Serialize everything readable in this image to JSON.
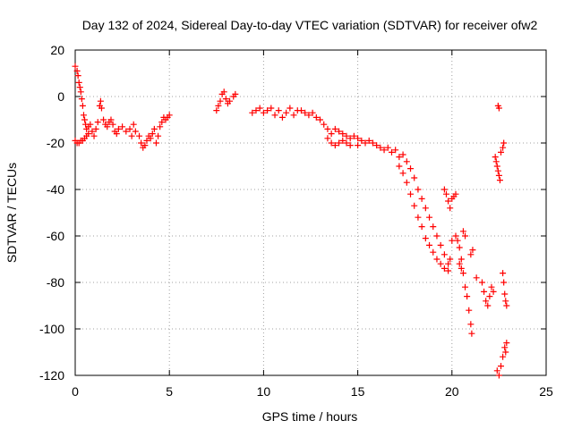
{
  "chart_data": {
    "type": "scatter",
    "title": "Day 132 of 2024, Sidereal Day-to-day VTEC variation (SDTVAR) for receiver ofw2",
    "xlabel": "GPS time / hours",
    "ylabel": "SDTVAR / TECUs",
    "xlim": [
      0,
      25
    ],
    "ylim": [
      -120,
      20
    ],
    "x_ticks": [
      0,
      5,
      10,
      15,
      20,
      25
    ],
    "y_ticks": [
      20,
      0,
      -20,
      -40,
      -60,
      -80,
      -100,
      -120
    ],
    "grid": true,
    "marker": "+",
    "series": [
      {
        "name": "SDTVAR",
        "color": "#ff0000",
        "points": [
          [
            0.0,
            13
          ],
          [
            0.1,
            11
          ],
          [
            0.15,
            9
          ],
          [
            0.2,
            6
          ],
          [
            0.25,
            4
          ],
          [
            0.3,
            2
          ],
          [
            0.35,
            -1
          ],
          [
            0.4,
            -4
          ],
          [
            0.0,
            -19
          ],
          [
            0.1,
            -20
          ],
          [
            0.2,
            -20
          ],
          [
            0.3,
            -19
          ],
          [
            0.4,
            -19
          ],
          [
            0.5,
            -18
          ],
          [
            0.6,
            -17
          ],
          [
            0.7,
            -16
          ],
          [
            0.45,
            -8
          ],
          [
            0.5,
            -10
          ],
          [
            0.55,
            -12
          ],
          [
            0.6,
            -14
          ],
          [
            0.7,
            -13
          ],
          [
            0.8,
            -12
          ],
          [
            0.9,
            -15
          ],
          [
            1.0,
            -17
          ],
          [
            1.1,
            -14
          ],
          [
            1.2,
            -11
          ],
          [
            1.3,
            -4
          ],
          [
            1.35,
            -2
          ],
          [
            1.4,
            -5
          ],
          [
            1.5,
            -10
          ],
          [
            1.6,
            -12
          ],
          [
            1.7,
            -13
          ],
          [
            1.8,
            -11
          ],
          [
            1.9,
            -10
          ],
          [
            2.0,
            -12
          ],
          [
            2.1,
            -15
          ],
          [
            2.2,
            -16
          ],
          [
            2.3,
            -14
          ],
          [
            2.5,
            -13
          ],
          [
            2.7,
            -15
          ],
          [
            2.9,
            -14
          ],
          [
            3.0,
            -17
          ],
          [
            3.1,
            -12
          ],
          [
            3.2,
            -15
          ],
          [
            3.4,
            -17
          ],
          [
            3.5,
            -20
          ],
          [
            3.6,
            -22
          ],
          [
            3.7,
            -21
          ],
          [
            3.8,
            -19
          ],
          [
            3.9,
            -17
          ],
          [
            4.0,
            -18
          ],
          [
            4.1,
            -16
          ],
          [
            4.2,
            -14
          ],
          [
            4.3,
            -20
          ],
          [
            4.4,
            -17
          ],
          [
            4.5,
            -13
          ],
          [
            4.6,
            -11
          ],
          [
            4.7,
            -9
          ],
          [
            4.8,
            -10
          ],
          [
            4.9,
            -9
          ],
          [
            5.0,
            -8
          ],
          [
            7.5,
            -6
          ],
          [
            7.6,
            -4
          ],
          [
            7.7,
            -2
          ],
          [
            7.8,
            1
          ],
          [
            7.9,
            2
          ],
          [
            8.0,
            -1
          ],
          [
            8.1,
            -3
          ],
          [
            8.2,
            -2
          ],
          [
            8.4,
            0
          ],
          [
            8.5,
            1
          ],
          [
            9.4,
            -7
          ],
          [
            9.6,
            -6
          ],
          [
            9.8,
            -5
          ],
          [
            10.0,
            -7
          ],
          [
            10.2,
            -6
          ],
          [
            10.4,
            -5
          ],
          [
            10.6,
            -8
          ],
          [
            10.8,
            -6
          ],
          [
            11.0,
            -9
          ],
          [
            11.2,
            -7
          ],
          [
            11.4,
            -5
          ],
          [
            11.6,
            -8
          ],
          [
            11.8,
            -6
          ],
          [
            12.0,
            -6
          ],
          [
            12.2,
            -7
          ],
          [
            12.4,
            -8
          ],
          [
            12.6,
            -7
          ],
          [
            12.8,
            -9
          ],
          [
            13.0,
            -10
          ],
          [
            13.2,
            -12
          ],
          [
            13.4,
            -14
          ],
          [
            13.6,
            -16
          ],
          [
            13.8,
            -14
          ],
          [
            14.0,
            -15
          ],
          [
            14.2,
            -16
          ],
          [
            14.4,
            -17
          ],
          [
            14.6,
            -18
          ],
          [
            14.8,
            -17
          ],
          [
            15.0,
            -18
          ],
          [
            15.2,
            -19
          ],
          [
            15.4,
            -20
          ],
          [
            15.6,
            -19
          ],
          [
            13.4,
            -18
          ],
          [
            13.6,
            -20
          ],
          [
            13.8,
            -21
          ],
          [
            14.0,
            -20
          ],
          [
            14.2,
            -19
          ],
          [
            14.4,
            -20
          ],
          [
            14.6,
            -21
          ],
          [
            15.0,
            -21
          ],
          [
            15.8,
            -20
          ],
          [
            16.0,
            -21
          ],
          [
            16.2,
            -22
          ],
          [
            16.4,
            -23
          ],
          [
            16.6,
            -22
          ],
          [
            16.8,
            -24
          ],
          [
            17.0,
            -23
          ],
          [
            17.2,
            -26
          ],
          [
            17.4,
            -25
          ],
          [
            17.6,
            -28
          ],
          [
            17.8,
            -31
          ],
          [
            18.0,
            -35
          ],
          [
            18.2,
            -40
          ],
          [
            18.4,
            -44
          ],
          [
            18.6,
            -48
          ],
          [
            18.8,
            -52
          ],
          [
            19.0,
            -56
          ],
          [
            19.2,
            -60
          ],
          [
            19.4,
            -64
          ],
          [
            19.6,
            -68
          ],
          [
            19.8,
            -72
          ],
          [
            19.9,
            -70
          ],
          [
            20.0,
            -62
          ],
          [
            17.2,
            -30
          ],
          [
            17.4,
            -33
          ],
          [
            17.6,
            -37
          ],
          [
            17.8,
            -42
          ],
          [
            18.0,
            -47
          ],
          [
            18.2,
            -52
          ],
          [
            18.4,
            -56
          ],
          [
            18.6,
            -61
          ],
          [
            18.8,
            -64
          ],
          [
            19.0,
            -67
          ],
          [
            19.2,
            -70
          ],
          [
            19.4,
            -72
          ],
          [
            19.6,
            -74
          ],
          [
            19.8,
            -75
          ],
          [
            19.6,
            -40
          ],
          [
            19.7,
            -42
          ],
          [
            19.8,
            -45
          ],
          [
            19.9,
            -48
          ],
          [
            20.0,
            -44
          ],
          [
            20.1,
            -43
          ],
          [
            20.2,
            -42
          ],
          [
            20.2,
            -60
          ],
          [
            20.3,
            -62
          ],
          [
            20.4,
            -65
          ],
          [
            20.5,
            -70
          ],
          [
            20.6,
            -76
          ],
          [
            20.7,
            -82
          ],
          [
            20.8,
            -86
          ],
          [
            20.9,
            -92
          ],
          [
            21.0,
            -98
          ],
          [
            21.05,
            -102
          ],
          [
            20.4,
            -72
          ],
          [
            20.5,
            -74
          ],
          [
            20.6,
            -58
          ],
          [
            20.7,
            -60
          ],
          [
            21.0,
            -68
          ],
          [
            21.1,
            -66
          ],
          [
            21.3,
            -78
          ],
          [
            21.6,
            -80
          ],
          [
            21.7,
            -84
          ],
          [
            21.8,
            -88
          ],
          [
            21.9,
            -90
          ],
          [
            22.0,
            -86
          ],
          [
            22.1,
            -82
          ],
          [
            22.2,
            -84
          ],
          [
            22.45,
            -4
          ],
          [
            22.5,
            -5
          ],
          [
            22.3,
            -26
          ],
          [
            22.35,
            -28
          ],
          [
            22.4,
            -30
          ],
          [
            22.45,
            -32
          ],
          [
            22.5,
            -34
          ],
          [
            22.55,
            -36
          ],
          [
            22.6,
            -24
          ],
          [
            22.7,
            -22
          ],
          [
            22.75,
            -20
          ],
          [
            22.7,
            -76
          ],
          [
            22.75,
            -80
          ],
          [
            22.8,
            -85
          ],
          [
            22.85,
            -88
          ],
          [
            22.9,
            -90
          ],
          [
            22.4,
            -118
          ],
          [
            22.5,
            -120
          ],
          [
            22.6,
            -116
          ],
          [
            22.7,
            -112
          ],
          [
            22.8,
            -108
          ],
          [
            22.85,
            -110
          ],
          [
            22.9,
            -106
          ]
        ]
      }
    ]
  }
}
